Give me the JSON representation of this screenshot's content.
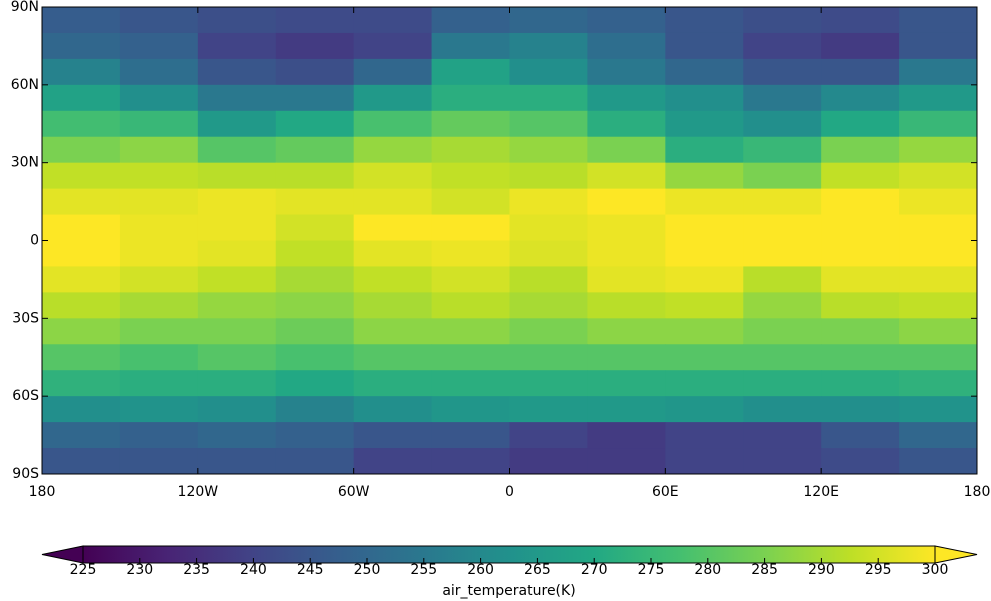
{
  "chart_data": {
    "type": "heatmap",
    "colormap": "viridis",
    "extend": "both",
    "colorbar_label": "air_temperature(K)",
    "clim": [
      225,
      300
    ],
    "cticks": [
      225,
      230,
      235,
      240,
      245,
      250,
      255,
      260,
      265,
      270,
      275,
      280,
      285,
      290,
      295,
      300
    ],
    "xlim": [
      -180,
      180
    ],
    "xticks": [
      {
        "value": -180,
        "label": "180"
      },
      {
        "value": -120,
        "label": "120W"
      },
      {
        "value": -60,
        "label": "60W"
      },
      0,
      {
        "value": 60,
        "label": "60E"
      },
      {
        "value": 120,
        "label": "120E"
      },
      {
        "value": 180,
        "label": "180"
      }
    ],
    "ylim": [
      -90,
      90
    ],
    "yticks": [
      {
        "value": 90,
        "label": "90N"
      },
      {
        "value": 60,
        "label": "60N"
      },
      {
        "value": 30,
        "label": "30N"
      },
      0,
      {
        "value": -30,
        "label": "30S"
      },
      {
        "value": -60,
        "label": "60S"
      },
      {
        "value": -90,
        "label": "90S"
      }
    ],
    "x": [
      -165,
      -135,
      -105,
      -75,
      -45,
      -15,
      15,
      45,
      75,
      105,
      135,
      165
    ],
    "y": [
      85,
      75,
      65,
      55,
      45,
      35,
      25,
      15,
      5,
      -5,
      -15,
      -25,
      -35,
      -45,
      -55,
      -65,
      -75,
      -85
    ],
    "values": [
      [
        247,
        245,
        243,
        242,
        242,
        248,
        250,
        248,
        245,
        243,
        242,
        245
      ],
      [
        250,
        248,
        240,
        238,
        240,
        255,
        258,
        252,
        245,
        240,
        238,
        245
      ],
      [
        258,
        252,
        245,
        243,
        250,
        268,
        262,
        255,
        250,
        245,
        245,
        255
      ],
      [
        268,
        262,
        255,
        255,
        265,
        272,
        272,
        265,
        262,
        255,
        260,
        265
      ],
      [
        277,
        275,
        265,
        270,
        278,
        282,
        280,
        272,
        265,
        262,
        270,
        275
      ],
      [
        285,
        287,
        280,
        282,
        288,
        290,
        288,
        285,
        272,
        275,
        285,
        288
      ],
      [
        293,
        293,
        292,
        292,
        295,
        293,
        292,
        295,
        288,
        285,
        293,
        295
      ],
      [
        297,
        297,
        298,
        297,
        297,
        295,
        298,
        300,
        298,
        298,
        300,
        298
      ],
      [
        300,
        298,
        298,
        295,
        300,
        300,
        297,
        298,
        300,
        300,
        300,
        300
      ],
      [
        300,
        298,
        297,
        293,
        297,
        298,
        296,
        298,
        300,
        300,
        300,
        300
      ],
      [
        297,
        295,
        293,
        290,
        293,
        295,
        292,
        297,
        298,
        292,
        297,
        297
      ],
      [
        292,
        290,
        288,
        287,
        290,
        292,
        290,
        292,
        293,
        288,
        292,
        293
      ],
      [
        287,
        285,
        285,
        283,
        287,
        287,
        285,
        287,
        287,
        285,
        285,
        287
      ],
      [
        280,
        278,
        280,
        278,
        280,
        280,
        280,
        280,
        280,
        280,
        280,
        280
      ],
      [
        273,
        272,
        272,
        270,
        272,
        272,
        272,
        272,
        272,
        272,
        272,
        273
      ],
      [
        262,
        263,
        262,
        258,
        262,
        264,
        265,
        265,
        264,
        262,
        262,
        263
      ],
      [
        250,
        248,
        250,
        248,
        245,
        245,
        240,
        238,
        240,
        240,
        245,
        250
      ],
      [
        245,
        245,
        245,
        245,
        240,
        240,
        238,
        238,
        240,
        240,
        242,
        245
      ]
    ]
  }
}
